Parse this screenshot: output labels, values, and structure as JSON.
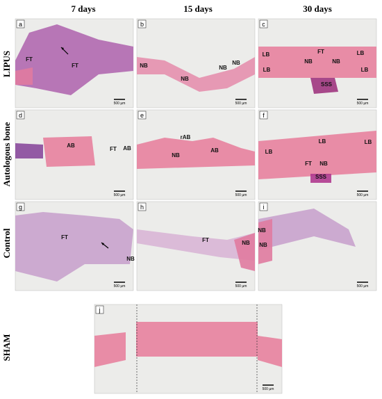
{
  "columns": [
    "7 days",
    "15 days",
    "30 days"
  ],
  "rows": [
    "LIPUS",
    "Autologous bone",
    "Control",
    "SHAM"
  ],
  "panels": [
    {
      "letter": "a",
      "labels": [
        "FT",
        "FT"
      ],
      "scale": "500 µm"
    },
    {
      "letter": "b",
      "labels": [
        "NB",
        "NB",
        "NB",
        "NB"
      ],
      "scale": "500 µm"
    },
    {
      "letter": "c",
      "labels": [
        "LB",
        "FT",
        "LB",
        "NB",
        "NB",
        "LB",
        "LB",
        "SSS"
      ],
      "scale": "500 µm"
    },
    {
      "letter": "d",
      "labels": [
        "AB",
        "FT",
        "AB"
      ],
      "scale": "500 µm"
    },
    {
      "letter": "e",
      "labels": [
        "rAB",
        "NB",
        "AB"
      ],
      "scale": "500 µm"
    },
    {
      "letter": "f",
      "labels": [
        "LB",
        "LB",
        "LB",
        "FT",
        "NB",
        "SSS"
      ],
      "scale": "500 µm"
    },
    {
      "letter": "g",
      "labels": [
        "FT",
        "NB"
      ],
      "scale": "500 µm"
    },
    {
      "letter": "h",
      "labels": [
        "FT",
        "NB"
      ],
      "scale": "500 µm"
    },
    {
      "letter": "i",
      "labels": [
        "NB",
        "NB"
      ],
      "scale": "500 µm"
    },
    {
      "letter": "j",
      "labels": [],
      "scale": "500 µm"
    }
  ]
}
